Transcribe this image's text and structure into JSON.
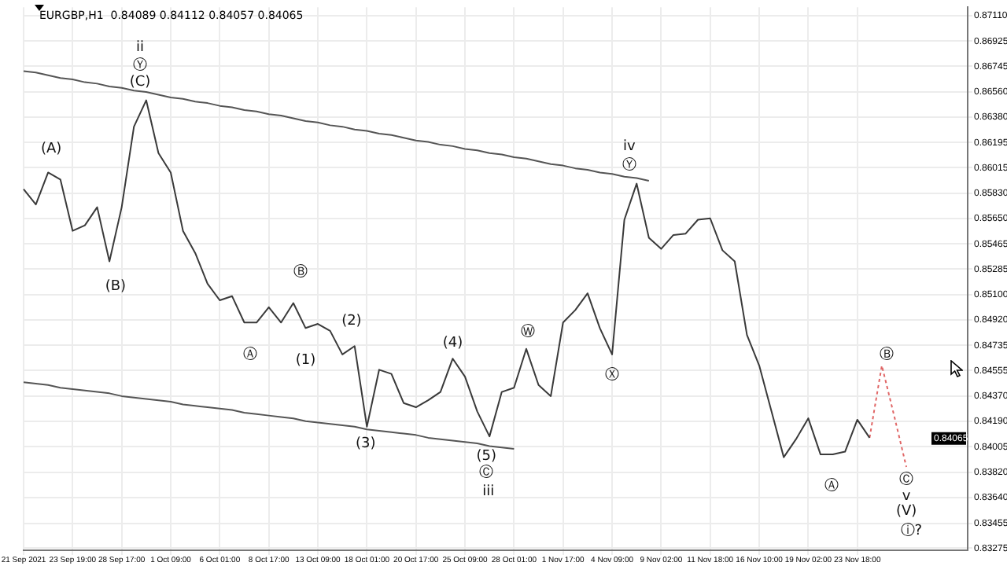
{
  "chart_data": {
    "type": "line",
    "title": "EURGBP,H1  0.84089 0.84112 0.84057 0.84065",
    "categories": [
      "21 Sep 2021",
      null,
      null,
      null,
      "23 Sep 19:00",
      null,
      null,
      null,
      "28 Sep 17:00",
      null,
      null,
      null,
      "1 Oct 09:00",
      null,
      null,
      null,
      "6 Oct 01:00",
      null,
      null,
      null,
      "8 Oct 17:00",
      null,
      null,
      null,
      "13 Oct 09:00",
      null,
      null,
      null,
      "18 Oct 01:00",
      null,
      null,
      null,
      "20 Oct 17:00",
      null,
      null,
      null,
      "25 Oct 09:00",
      null,
      null,
      null,
      "28 Oct 01:00",
      null,
      null,
      null,
      "1 Nov 17:00",
      null,
      null,
      null,
      "4 Nov 09:00",
      null,
      null,
      null,
      "9 Nov 02:00",
      null,
      null,
      null,
      "11 Nov 18:00",
      null,
      null,
      null,
      "16 Nov 10:00",
      null,
      null,
      null,
      "19 Nov 02:00",
      null,
      null,
      null,
      "23 Nov 18:00",
      null,
      null,
      null,
      null,
      null,
      null,
      null,
      null,
      null
    ],
    "series": [
      {
        "color": "#3a3a3a",
        "line_style": "solid",
        "values": [
          0.8586,
          0.8575,
          0.8598,
          0.8593,
          0.8556,
          0.856,
          0.8573,
          0.8534,
          0.8573,
          0.8631,
          0.865,
          0.8612,
          0.8598,
          0.8556,
          0.854,
          0.8518,
          0.8506,
          0.8509,
          0.849,
          0.849,
          0.8501,
          0.849,
          0.8504,
          0.8486,
          0.8489,
          0.8484,
          0.8467,
          0.8473,
          0.8415,
          0.8456,
          0.8453,
          0.8432,
          0.8429,
          0.8434,
          0.844,
          0.8464,
          0.8451,
          0.8426,
          0.8408,
          0.844,
          0.8443,
          0.8471,
          0.8445,
          0.8437,
          0.849,
          0.8499,
          0.8511,
          0.8486,
          0.8467,
          0.8564,
          0.859,
          0.8551,
          0.8543,
          0.8553,
          0.8554,
          0.8564,
          0.8565,
          0.8542,
          0.8534,
          0.8481,
          0.8459,
          0.8426,
          0.8393,
          0.8406,
          0.8421,
          0.8395,
          0.8395,
          0.8397,
          0.842,
          0.8407,
          null,
          null,
          null,
          null,
          null,
          null,
          null,
          null
        ]
      },
      {
        "color": "#e06666",
        "line_style": "dotted",
        "values": [
          null,
          null,
          null,
          null,
          null,
          null,
          null,
          null,
          null,
          null,
          null,
          null,
          null,
          null,
          null,
          null,
          null,
          null,
          null,
          null,
          null,
          null,
          null,
          null,
          null,
          null,
          null,
          null,
          null,
          null,
          null,
          null,
          null,
          null,
          null,
          null,
          null,
          null,
          null,
          null,
          null,
          null,
          null,
          null,
          null,
          null,
          null,
          null,
          null,
          null,
          null,
          null,
          null,
          null,
          null,
          null,
          null,
          null,
          null,
          null,
          null,
          null,
          null,
          null,
          null,
          null,
          null,
          null,
          null,
          0.8407,
          0.8459,
          0.8423,
          0.8386,
          null,
          null,
          null,
          null,
          null
        ]
      },
      {
        "color": "#555555",
        "line_style": "solid",
        "values": [
          0.8671,
          0.867,
          0.8668,
          0.8666,
          0.8665,
          0.8663,
          0.8662,
          0.866,
          0.8659,
          0.8657,
          0.8656,
          0.8654,
          0.8652,
          0.8651,
          0.8649,
          0.8648,
          0.8646,
          0.8645,
          0.8643,
          0.8642,
          0.864,
          0.8639,
          0.8637,
          0.8635,
          0.8634,
          0.8632,
          0.8631,
          0.8629,
          0.8628,
          0.8626,
          0.8625,
          0.8623,
          0.8621,
          0.862,
          0.8618,
          0.8617,
          0.8615,
          0.8614,
          0.8612,
          0.8611,
          0.8609,
          0.8608,
          0.8606,
          0.8604,
          0.8603,
          0.8601,
          0.86,
          0.8598,
          0.8597,
          0.8595,
          0.8594,
          0.8592,
          null,
          null,
          null,
          null,
          null,
          null,
          null,
          null,
          null,
          null,
          null,
          null,
          null,
          null,
          null,
          null,
          null,
          null,
          null,
          null,
          null,
          null,
          null,
          null,
          null,
          null
        ]
      },
      {
        "color": "#555555",
        "line_style": "solid",
        "values": [
          0.8447,
          0.8446,
          0.8445,
          0.8443,
          0.8442,
          0.8441,
          0.844,
          0.8439,
          0.8437,
          0.8436,
          0.8435,
          0.8434,
          0.8433,
          0.8431,
          0.843,
          0.8429,
          0.8428,
          0.8427,
          0.8425,
          0.8424,
          0.8423,
          0.8422,
          0.8421,
          0.8419,
          0.8418,
          0.8417,
          0.8416,
          0.8415,
          0.8413,
          0.8412,
          0.8411,
          0.841,
          0.8409,
          0.8407,
          0.8406,
          0.8405,
          0.8404,
          0.8403,
          0.8401,
          0.84,
          0.8399,
          null,
          null,
          null,
          null,
          null,
          null,
          null,
          null,
          null,
          null,
          null,
          null,
          null,
          null,
          null,
          null,
          null,
          null,
          null,
          null,
          null,
          null,
          null,
          null,
          null,
          null,
          null,
          null,
          null,
          null,
          null,
          null,
          null,
          null,
          null,
          null,
          null
        ]
      }
    ],
    "ylim": [
      0.8326,
      0.8717
    ],
    "yticks": [
      {
        "value": 0.8711,
        "label": "0.87110"
      },
      {
        "value": 0.86925,
        "label": "0.86925"
      },
      {
        "value": 0.86745,
        "label": "0.86745"
      },
      {
        "value": 0.8656,
        "label": "0.86560"
      },
      {
        "value": 0.8638,
        "label": "0.86380"
      },
      {
        "value": 0.86195,
        "label": "0.86195"
      },
      {
        "value": 0.86015,
        "label": "0.86015"
      },
      {
        "value": 0.8583,
        "label": "0.85830"
      },
      {
        "value": 0.8565,
        "label": "0.85650"
      },
      {
        "value": 0.85465,
        "label": "0.85465"
      },
      {
        "value": 0.85285,
        "label": "0.85285"
      },
      {
        "value": 0.851,
        "label": "0.85100"
      },
      {
        "value": 0.8492,
        "label": "0.84920"
      },
      {
        "value": 0.84735,
        "label": "0.84735"
      },
      {
        "value": 0.84555,
        "label": "0.84555"
      },
      {
        "value": 0.8437,
        "label": "0.84370"
      },
      {
        "value": 0.8419,
        "label": "0.84190"
      },
      {
        "value": 0.84005,
        "label": "0.84005"
      },
      {
        "value": 0.8382,
        "label": "0.83820"
      },
      {
        "value": 0.8364,
        "label": "0.83640"
      },
      {
        "value": 0.83455,
        "label": "0.83455"
      },
      {
        "value": 0.83275,
        "label": "0.83275"
      }
    ],
    "annotations": [
      "ii",
      "Ⓨ",
      "(C)",
      "(A)",
      "(B)",
      "Ⓐ",
      "Ⓑ",
      "(1)",
      "(2)",
      "(3)",
      "(4)",
      "(5)",
      "Ⓒ",
      "iii",
      "Ⓦ",
      "Ⓧ",
      "iv",
      "Ⓨ",
      "Ⓐ",
      "Ⓑ",
      "Ⓒ",
      "v",
      "(V)",
      "ⓘ?",
      {
        "text": "0.84065",
        "y": 0.84065
      }
    ],
    "grid": true,
    "legend": false,
    "marker": "none"
  }
}
